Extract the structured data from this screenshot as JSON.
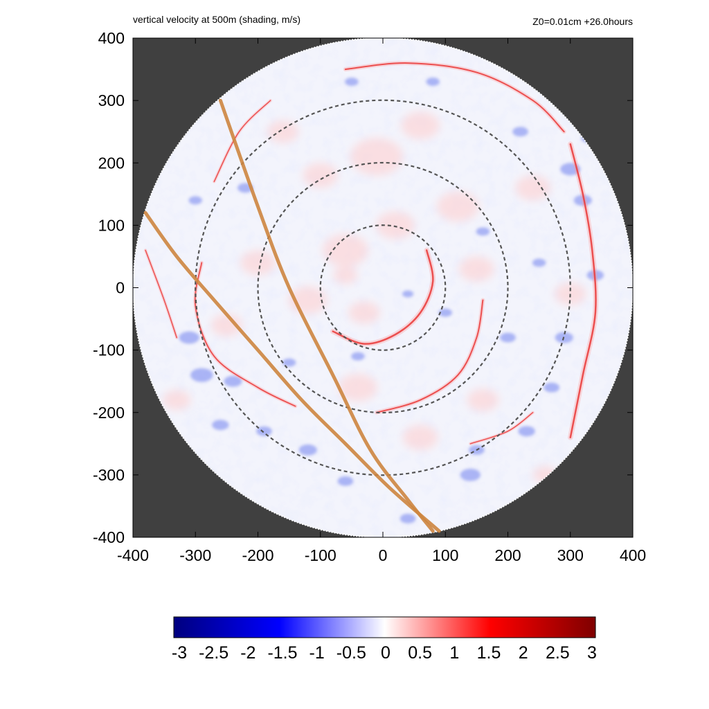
{
  "chart_data": {
    "type": "heatmap",
    "title": "vertical velocity at 500m (shading, m/s)",
    "subtitle": "Z0=0.01cm  +26.0hours",
    "xlabel": "",
    "ylabel": "",
    "xlim": [
      -400,
      400
    ],
    "ylim": [
      -400,
      400
    ],
    "x_ticks": [
      -400,
      -300,
      -200,
      -100,
      0,
      100,
      200,
      300,
      400
    ],
    "y_ticks": [
      -400,
      -300,
      -200,
      -100,
      0,
      100,
      200,
      300,
      400
    ],
    "domain_radius": 400,
    "dashed_circle_radii": [
      100,
      200,
      300
    ],
    "grid": false,
    "background_outside_domain": "#404040",
    "colorbar": {
      "range": [
        -3,
        3
      ],
      "ticks": [
        "-3",
        "-2.5",
        "-2",
        "-1.5",
        "-1",
        "-0.5",
        "0",
        "0.5",
        "1",
        "1.5",
        "2",
        "2.5",
        "3"
      ],
      "colors": [
        "#00007f",
        "#0000ff",
        "#ffffff",
        "#ff0000",
        "#7f0000"
      ]
    },
    "overlay_lines": [
      {
        "color": "#cd853f",
        "points": [
          [
            -260,
            300
          ],
          [
            -200,
            130
          ],
          [
            -150,
            0
          ],
          [
            -80,
            -140
          ],
          [
            -20,
            -260
          ],
          [
            40,
            -340
          ],
          [
            80,
            -390
          ]
        ]
      },
      {
        "color": "#cd853f",
        "points": [
          [
            -380,
            120
          ],
          [
            -330,
            50
          ],
          [
            -270,
            -20
          ],
          [
            -200,
            -100
          ],
          [
            -130,
            -180
          ],
          [
            -60,
            -250
          ],
          [
            10,
            -320
          ],
          [
            90,
            -390
          ]
        ]
      }
    ],
    "rainbands": [
      {
        "color": "#e01010",
        "width": 2.5,
        "points": [
          [
            70,
            60
          ],
          [
            80,
            10
          ],
          [
            60,
            -40
          ],
          [
            20,
            -75
          ],
          [
            -30,
            -90
          ],
          [
            -80,
            -70
          ]
        ]
      },
      {
        "color": "#e01010",
        "width": 2.0,
        "points": [
          [
            -10,
            -200
          ],
          [
            60,
            -180
          ],
          [
            120,
            -140
          ],
          [
            150,
            -80
          ],
          [
            160,
            -20
          ]
        ]
      },
      {
        "color": "#e01010",
        "width": 2.5,
        "points": [
          [
            300,
            230
          ],
          [
            320,
            150
          ],
          [
            335,
            60
          ],
          [
            340,
            -40
          ],
          [
            320,
            -140
          ],
          [
            300,
            -240
          ]
        ]
      },
      {
        "color": "#e01010",
        "width": 2.0,
        "points": [
          [
            -60,
            350
          ],
          [
            40,
            360
          ],
          [
            150,
            345
          ],
          [
            240,
            300
          ],
          [
            290,
            250
          ]
        ]
      },
      {
        "color": "#e01010",
        "width": 1.8,
        "points": [
          [
            -290,
            40
          ],
          [
            -300,
            -30
          ],
          [
            -270,
            -110
          ],
          [
            -200,
            -160
          ],
          [
            -140,
            -190
          ]
        ]
      },
      {
        "color": "#e01010",
        "width": 1.5,
        "points": [
          [
            140,
            -250
          ],
          [
            200,
            -230
          ],
          [
            240,
            -200
          ]
        ]
      },
      {
        "color": "#e01010",
        "width": 1.5,
        "points": [
          [
            -270,
            170
          ],
          [
            -230,
            250
          ],
          [
            -180,
            300
          ]
        ]
      },
      {
        "color": "#e01010",
        "width": 1.5,
        "points": [
          [
            -380,
            60
          ],
          [
            -350,
            -20
          ],
          [
            -330,
            -80
          ]
        ]
      }
    ],
    "blue_patches": [
      [
        -310,
        -80,
        18
      ],
      [
        -290,
        -140,
        20
      ],
      [
        -240,
        -150,
        16
      ],
      [
        -260,
        -220,
        15
      ],
      [
        -190,
        -230,
        14
      ],
      [
        -120,
        -260,
        16
      ],
      [
        -60,
        -310,
        14
      ],
      [
        40,
        -370,
        14
      ],
      [
        140,
        -300,
        18
      ],
      [
        150,
        -260,
        14
      ],
      [
        230,
        -230,
        15
      ],
      [
        270,
        -160,
        14
      ],
      [
        290,
        -80,
        16
      ],
      [
        340,
        20,
        15
      ],
      [
        320,
        140,
        16
      ],
      [
        300,
        190,
        18
      ],
      [
        330,
        240,
        14
      ],
      [
        160,
        90,
        12
      ],
      [
        100,
        -40,
        12
      ],
      [
        40,
        -10,
        10
      ],
      [
        -40,
        -110,
        12
      ],
      [
        200,
        -80,
        14
      ],
      [
        250,
        40,
        12
      ],
      [
        -220,
        160,
        14
      ],
      [
        -300,
        140,
        12
      ],
      [
        -50,
        330,
        12
      ],
      [
        80,
        330,
        12
      ],
      [
        220,
        250,
        14
      ],
      [
        -150,
        -120,
        12
      ]
    ],
    "pink_patches": [
      [
        -10,
        210,
        30
      ],
      [
        60,
        260,
        22
      ],
      [
        -100,
        180,
        20
      ],
      [
        -60,
        60,
        26
      ],
      [
        20,
        100,
        22
      ],
      [
        120,
        130,
        24
      ],
      [
        150,
        30,
        20
      ],
      [
        -30,
        -40,
        18
      ],
      [
        -120,
        -20,
        22
      ],
      [
        -200,
        40,
        20
      ],
      [
        -250,
        -60,
        18
      ],
      [
        -40,
        -160,
        22
      ],
      [
        60,
        -240,
        20
      ],
      [
        160,
        -180,
        18
      ],
      [
        240,
        160,
        20
      ],
      [
        300,
        -10,
        18
      ],
      [
        260,
        -300,
        14
      ],
      [
        -160,
        250,
        18
      ],
      [
        -330,
        -180,
        16
      ],
      [
        -60,
        20,
        14
      ]
    ]
  }
}
